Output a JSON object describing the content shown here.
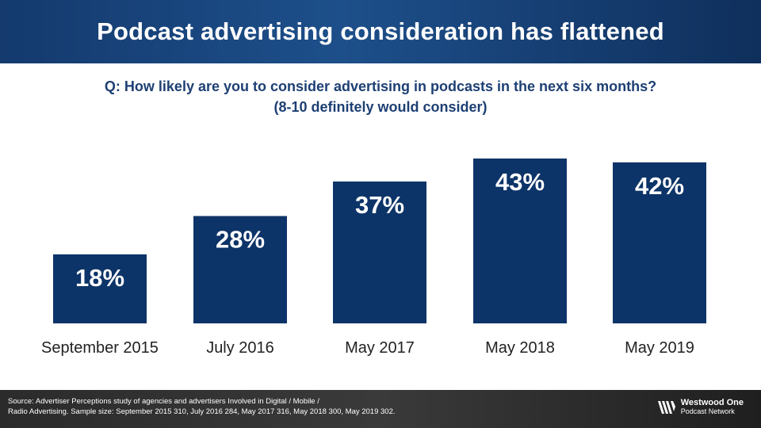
{
  "header": {
    "title": "Podcast advertising consideration has flattened"
  },
  "question": {
    "line1": "Q: How likely are you to consider advertising in podcasts in the next six months?",
    "line2": "(8-10 definitely would consider)"
  },
  "chart_data": {
    "type": "bar",
    "categories": [
      "September 2015",
      "July 2016",
      "May 2017",
      "May 2018",
      "May 2019"
    ],
    "values": [
      18,
      28,
      37,
      43,
      42
    ],
    "data_labels": [
      "18%",
      "28%",
      "37%",
      "43%",
      "42%"
    ],
    "title": "",
    "xlabel": "",
    "ylabel": "",
    "ylim": [
      0,
      43
    ],
    "grid": false,
    "legend": "none",
    "bar_color": "#0d3468",
    "label_color": "#ffffff"
  },
  "footer": {
    "source_line1": "Source: Advertiser Perceptions study of agencies and advertisers Involved in Digital / Mobile /",
    "source_line2": "Radio Advertising. Sample size: September 2015 310, July 2016 284,  May 2017 316, May 2018 300, May 2019 302.",
    "logo_line1": "Westwood One",
    "logo_line2": "Podcast Network",
    "logo_icon": "westwood-one-logo-icon"
  }
}
